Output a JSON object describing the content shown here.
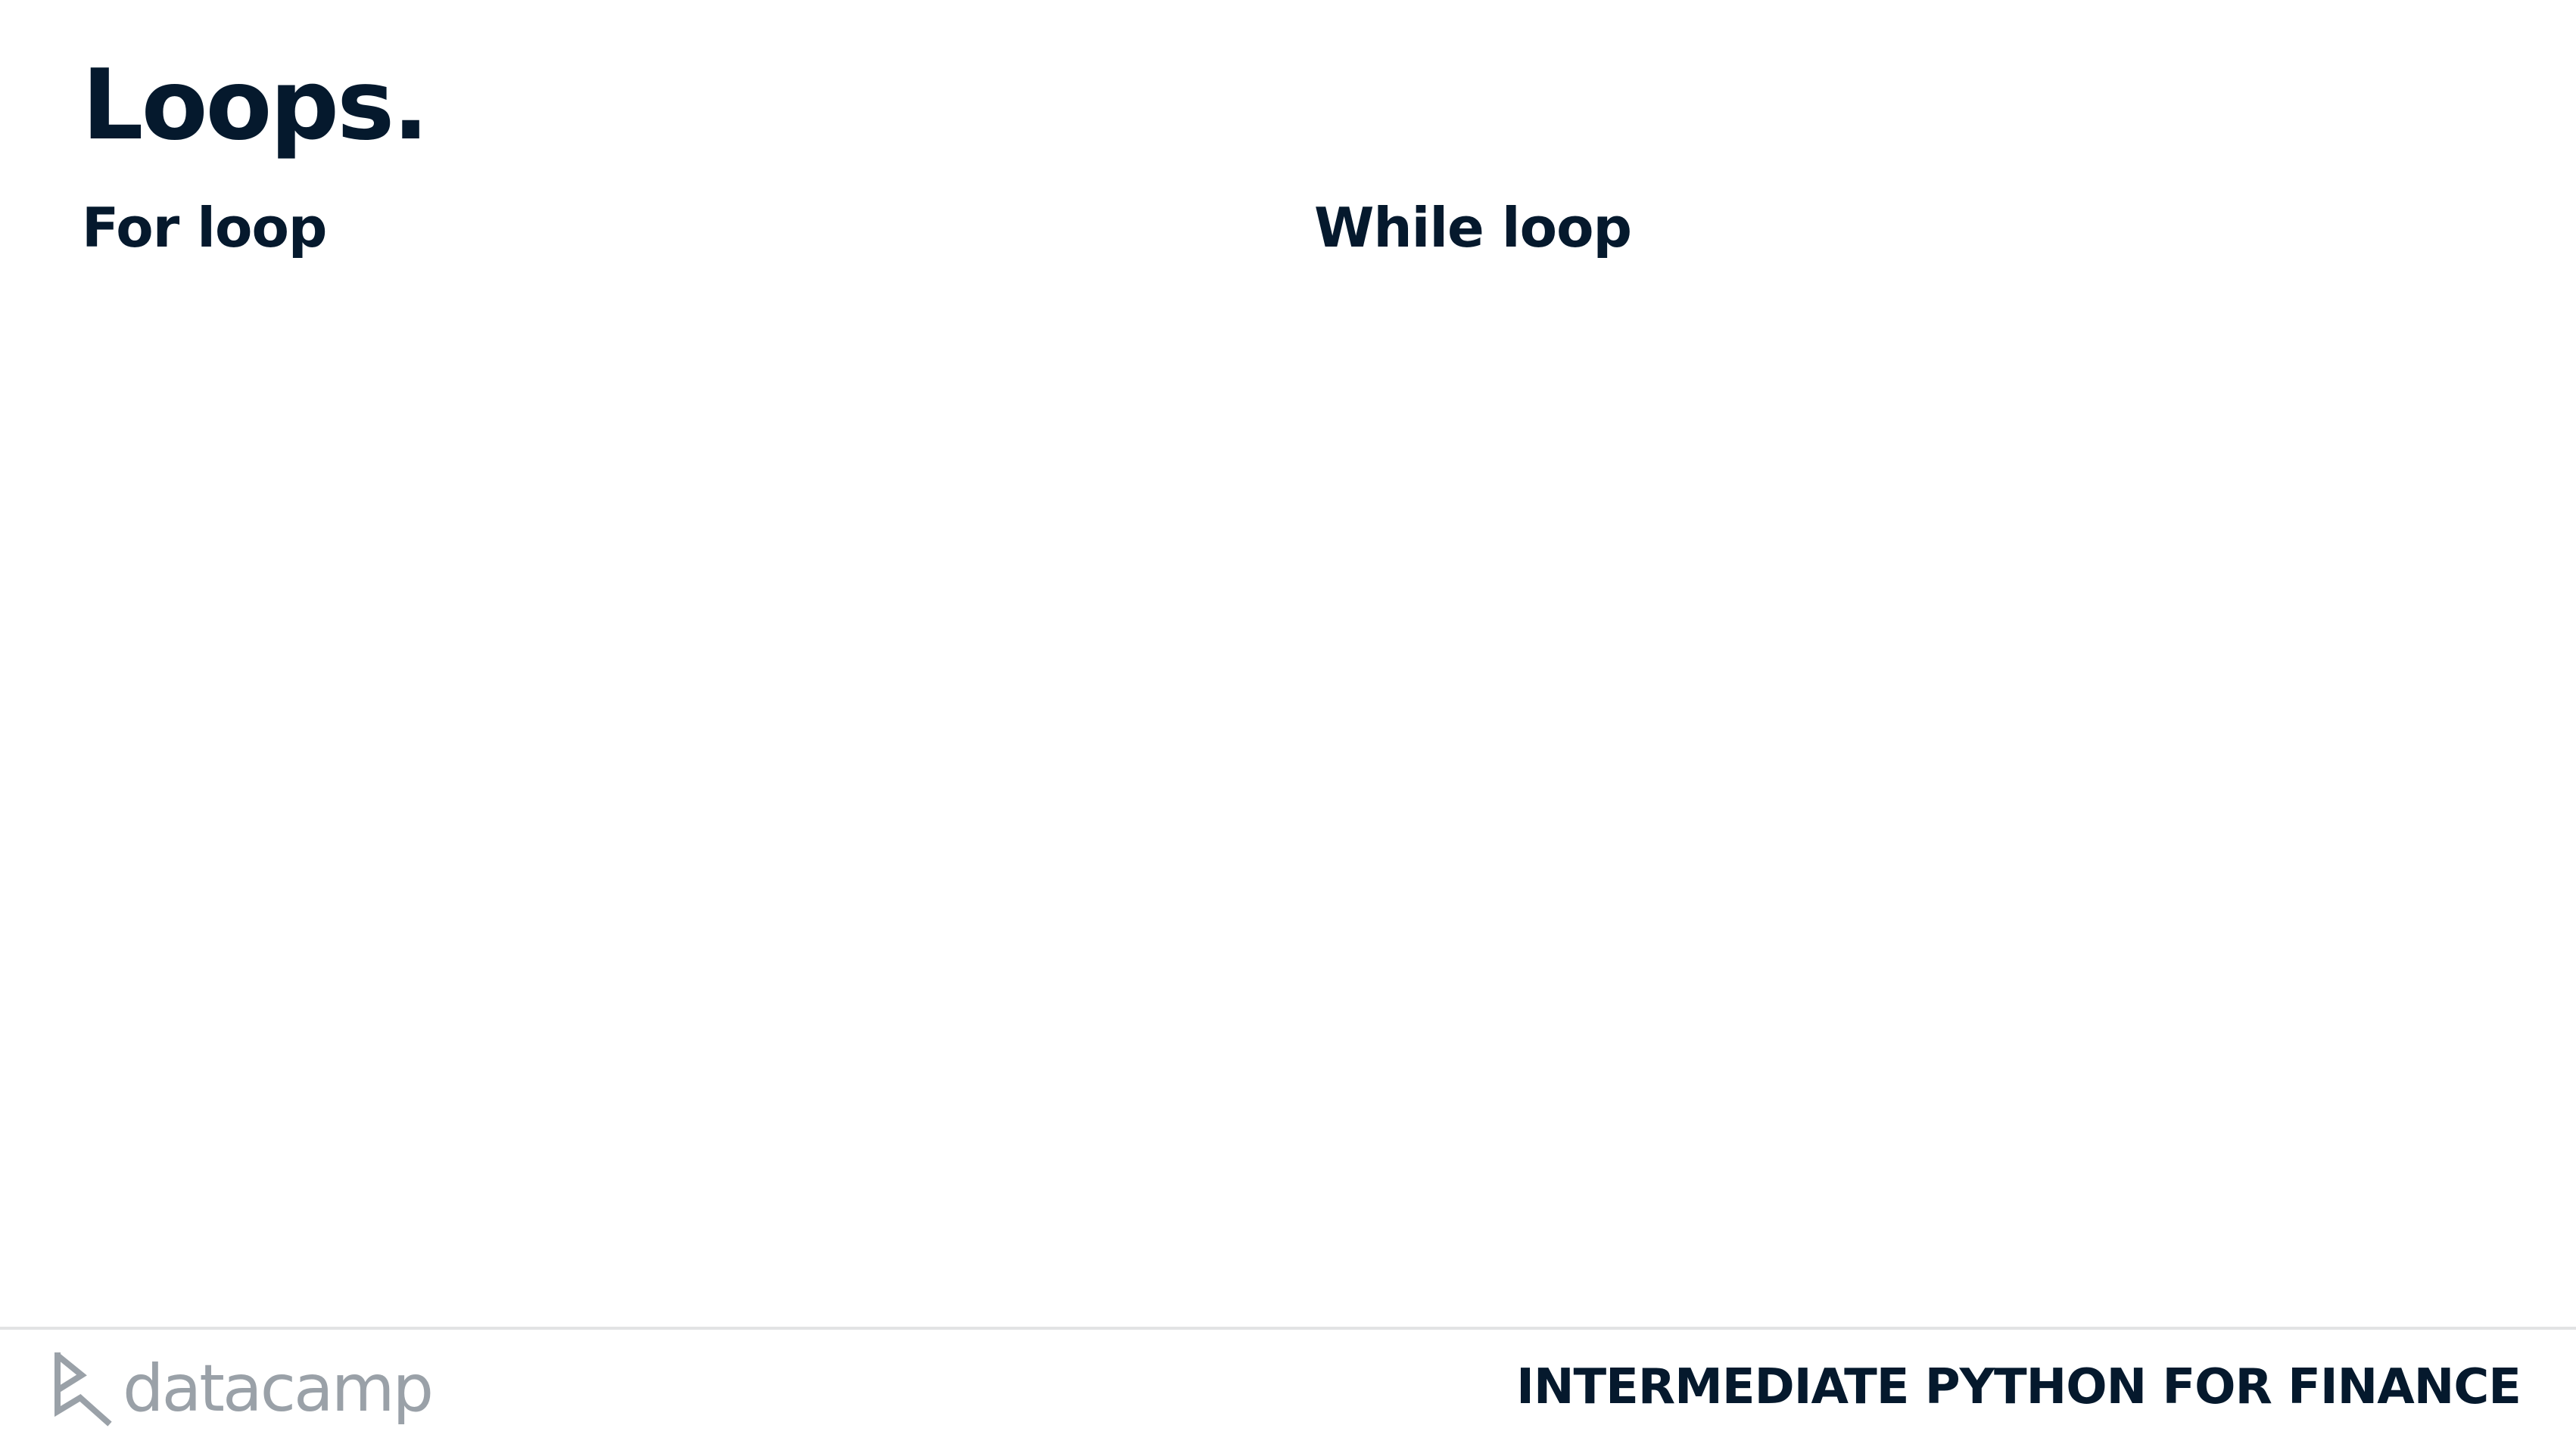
{
  "slide": {
    "title": "Loops.",
    "columns": [
      {
        "heading": "For loop"
      },
      {
        "heading": "While loop"
      }
    ]
  },
  "footer": {
    "logo_text": "datacamp",
    "logo_icon": "datacamp-logo-icon",
    "course_name": "INTERMEDIATE PYTHON FOR FINANCE"
  },
  "colors": {
    "text": "#05192d",
    "logo": "#9aa1a8",
    "rule": "#e2e3e4"
  }
}
